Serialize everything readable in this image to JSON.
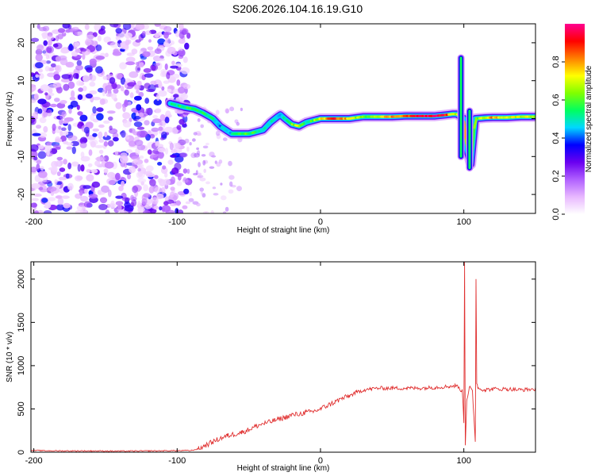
{
  "title": "S206.2026.104.16.19.G10",
  "chart_data": [
    {
      "type": "heatmap",
      "xlabel": "Height of straight line (km)",
      "ylabel": "Frequency (Hz)",
      "xlim": [
        -202,
        150
      ],
      "ylim": [
        -25,
        25
      ],
      "xticks": [
        -200,
        -100,
        0,
        100
      ],
      "yticks": [
        -20,
        -10,
        0,
        10,
        20
      ],
      "colorbar": {
        "label": "Normalized spectral amplitude",
        "range": [
          0,
          1
        ],
        "ticks": [
          0.0,
          0.2,
          0.4,
          0.6,
          0.8
        ],
        "colors": [
          "#ffffff",
          "#e8b8ff",
          "#b060ff",
          "#6a00f0",
          "#0000ff",
          "#00d8ff",
          "#00ff60",
          "#80ff00",
          "#ffff00",
          "#ff8000",
          "#ff0000",
          "#ff0090"
        ]
      },
      "noise_region": {
        "x_range": [
          -202,
          -92
        ],
        "y_range": [
          -25,
          25
        ]
      },
      "ridge": {
        "x": [
          -105,
          -95,
          -88,
          -82,
          -75,
          -70,
          -62,
          -55,
          -50,
          -45,
          -40,
          -35,
          -30,
          -28,
          -25,
          -20,
          -15,
          -10,
          -5,
          0,
          10,
          20,
          30,
          40,
          50,
          60,
          70,
          80,
          88,
          92,
          95,
          100,
          102,
          105,
          108,
          115,
          120,
          130,
          140,
          150
        ],
        "y": [
          4,
          3,
          2.5,
          1.5,
          0,
          -2,
          -4,
          -4,
          -4,
          -3.5,
          -3,
          -1,
          0.5,
          1,
          0,
          -1.5,
          -2,
          -1,
          -0.5,
          0,
          0,
          0,
          0.5,
          0.5,
          0.5,
          0.7,
          0.7,
          0.7,
          1,
          1.2,
          1.2,
          0,
          -8,
          -12,
          0,
          0.2,
          0.3,
          0.3,
          0.5,
          0.5
        ],
        "amplitude": [
          0.5,
          0.55,
          0.55,
          0.55,
          0.5,
          0.45,
          0.45,
          0.55,
          0.6,
          0.55,
          0.5,
          0.45,
          0.5,
          0.45,
          0.5,
          0.6,
          0.7,
          0.5,
          0.6,
          0.7,
          0.9,
          0.75,
          0.6,
          0.7,
          0.8,
          0.85,
          0.95,
          0.95,
          0.9,
          0.7,
          0.6,
          0.9,
          0.7,
          0.65,
          0.6,
          0.7,
          0.8,
          0.7,
          0.7,
          0.7
        ]
      },
      "spikes": [
        {
          "x": 98,
          "y_range": [
            -10,
            16
          ]
        },
        {
          "x": 104,
          "y_range": [
            -13,
            2
          ]
        }
      ]
    },
    {
      "type": "line",
      "xlabel": "Height of straight line (km)",
      "ylabel": "SNR (10 * v/v)",
      "xlim": [
        -202,
        150
      ],
      "ylim": [
        0,
        2200
      ],
      "xticks": [
        -200,
        -100,
        0,
        100
      ],
      "yticks": [
        0,
        500,
        1000,
        1500,
        2000
      ],
      "series": [
        {
          "name": "SNR",
          "color": "#e03030",
          "x": [
            -202,
            -180,
            -160,
            -140,
            -120,
            -100,
            -90,
            -85,
            -80,
            -75,
            -70,
            -65,
            -60,
            -55,
            -50,
            -45,
            -40,
            -35,
            -30,
            -25,
            -20,
            -15,
            -10,
            -5,
            0,
            5,
            10,
            15,
            20,
            25,
            30,
            35,
            40,
            50,
            60,
            70,
            80,
            90,
            95,
            99,
            100,
            100.5,
            101,
            102,
            104,
            106,
            108,
            108.5,
            109,
            110,
            115,
            120,
            130,
            140,
            150
          ],
          "y": [
            20,
            15,
            15,
            12,
            15,
            18,
            20,
            40,
            80,
            120,
            160,
            190,
            210,
            230,
            260,
            300,
            330,
            350,
            380,
            400,
            430,
            440,
            460,
            470,
            500,
            540,
            580,
            620,
            650,
            690,
            720,
            730,
            740,
            740,
            740,
            740,
            750,
            760,
            770,
            700,
            350,
            2200,
            80,
            600,
            750,
            700,
            120,
            2000,
            800,
            740,
            720,
            730,
            730,
            720,
            730
          ]
        }
      ]
    }
  ]
}
